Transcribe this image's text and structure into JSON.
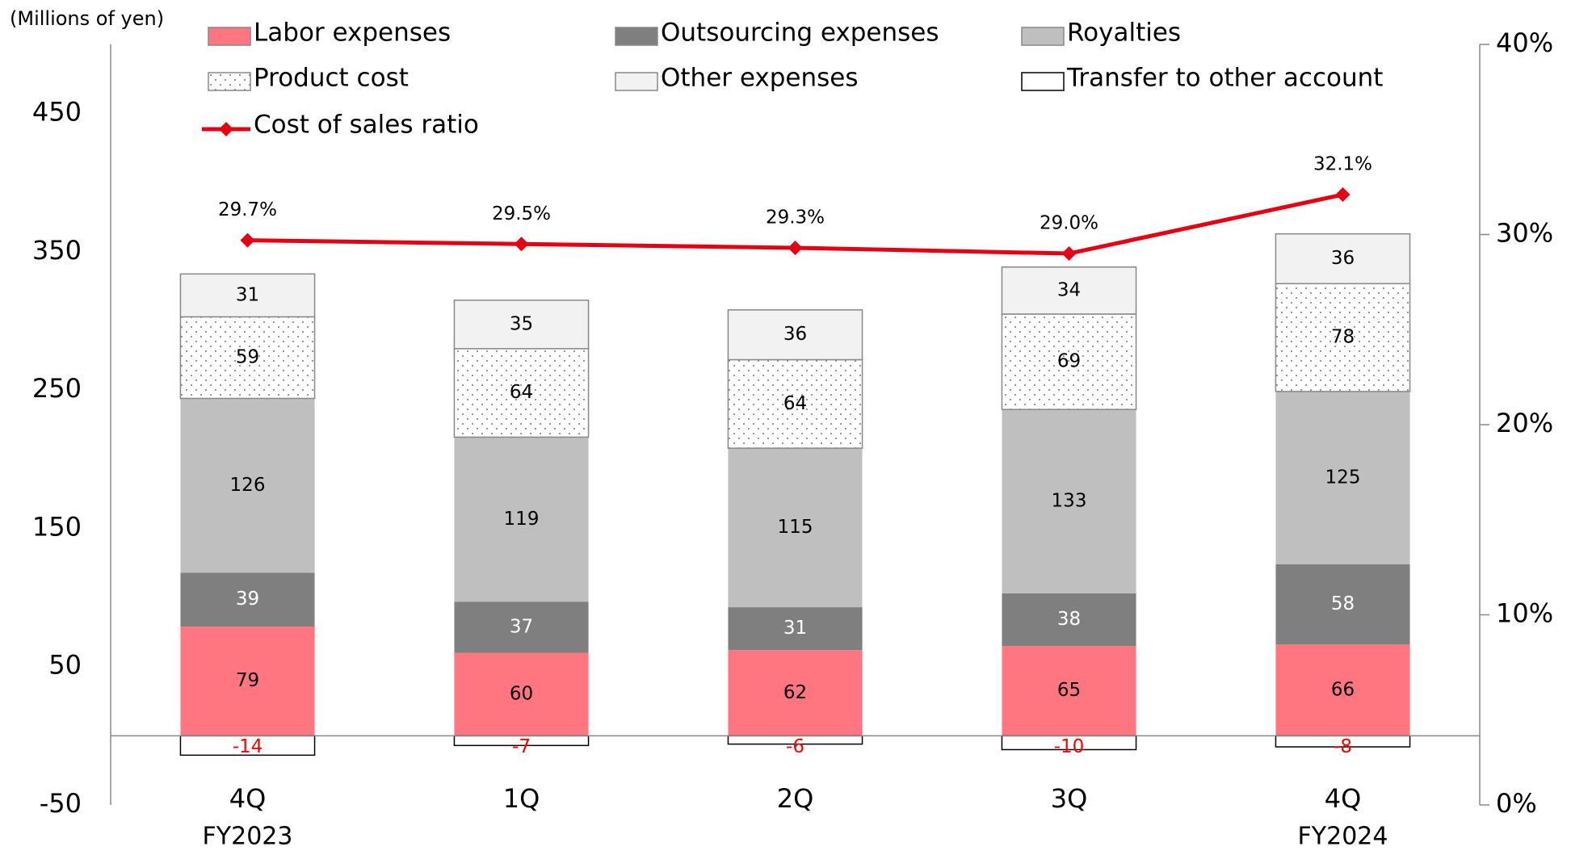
{
  "chart_data": {
    "type": "stacked_bar_line",
    "y_label": "(Millions of yen)",
    "categories": [
      "4Q",
      "1Q",
      "2Q",
      "3Q",
      "4Q"
    ],
    "category_sublabels": [
      "FY2023",
      null,
      null,
      null,
      "FY2024"
    ],
    "series": [
      {
        "name": "Labor expenses",
        "color": "#ff7680",
        "label_color": "#000000",
        "values": [
          79,
          60,
          62,
          65,
          66
        ]
      },
      {
        "name": "Outsourcing expenses",
        "color": "#7f7f7f",
        "label_color": "#ffffff",
        "values": [
          39,
          37,
          31,
          38,
          58
        ]
      },
      {
        "name": "Royalties",
        "color": "#bfbfbf",
        "label_color": "#000000",
        "values": [
          126,
          119,
          115,
          133,
          125
        ]
      },
      {
        "name": "Product cost",
        "color": "dotted",
        "label_color": "#000000",
        "values": [
          59,
          64,
          64,
          69,
          78
        ]
      },
      {
        "name": "Other expenses",
        "color": "#f2f2f2",
        "label_color": "#000000",
        "values": [
          31,
          35,
          36,
          34,
          36
        ]
      },
      {
        "name": "Transfer to other account",
        "color": "#ffffff",
        "label_color": "#ff0000",
        "values": [
          -14,
          -7,
          -6,
          -10,
          -8
        ]
      },
      {
        "name": "Cost of sales ratio",
        "kind": "line",
        "axis": "y2",
        "color": "#e60012",
        "values": [
          29.7,
          29.5,
          29.3,
          29.0,
          32.1
        ],
        "value_labels": [
          "29.7%",
          "29.5%",
          "29.3%",
          "29.0%",
          "32.1%"
        ]
      }
    ],
    "ylim": [
      -50,
      500
    ],
    "yticks": [
      -50,
      50,
      150,
      250,
      350,
      450
    ],
    "y2lim": [
      0,
      40
    ],
    "y2ticks": [
      {
        "value": 0,
        "label": "0%"
      },
      {
        "value": 10,
        "label": "10%"
      },
      {
        "value": 20,
        "label": "20%"
      },
      {
        "value": 30,
        "label": "30%"
      },
      {
        "value": 40,
        "label": "40%"
      }
    ]
  }
}
